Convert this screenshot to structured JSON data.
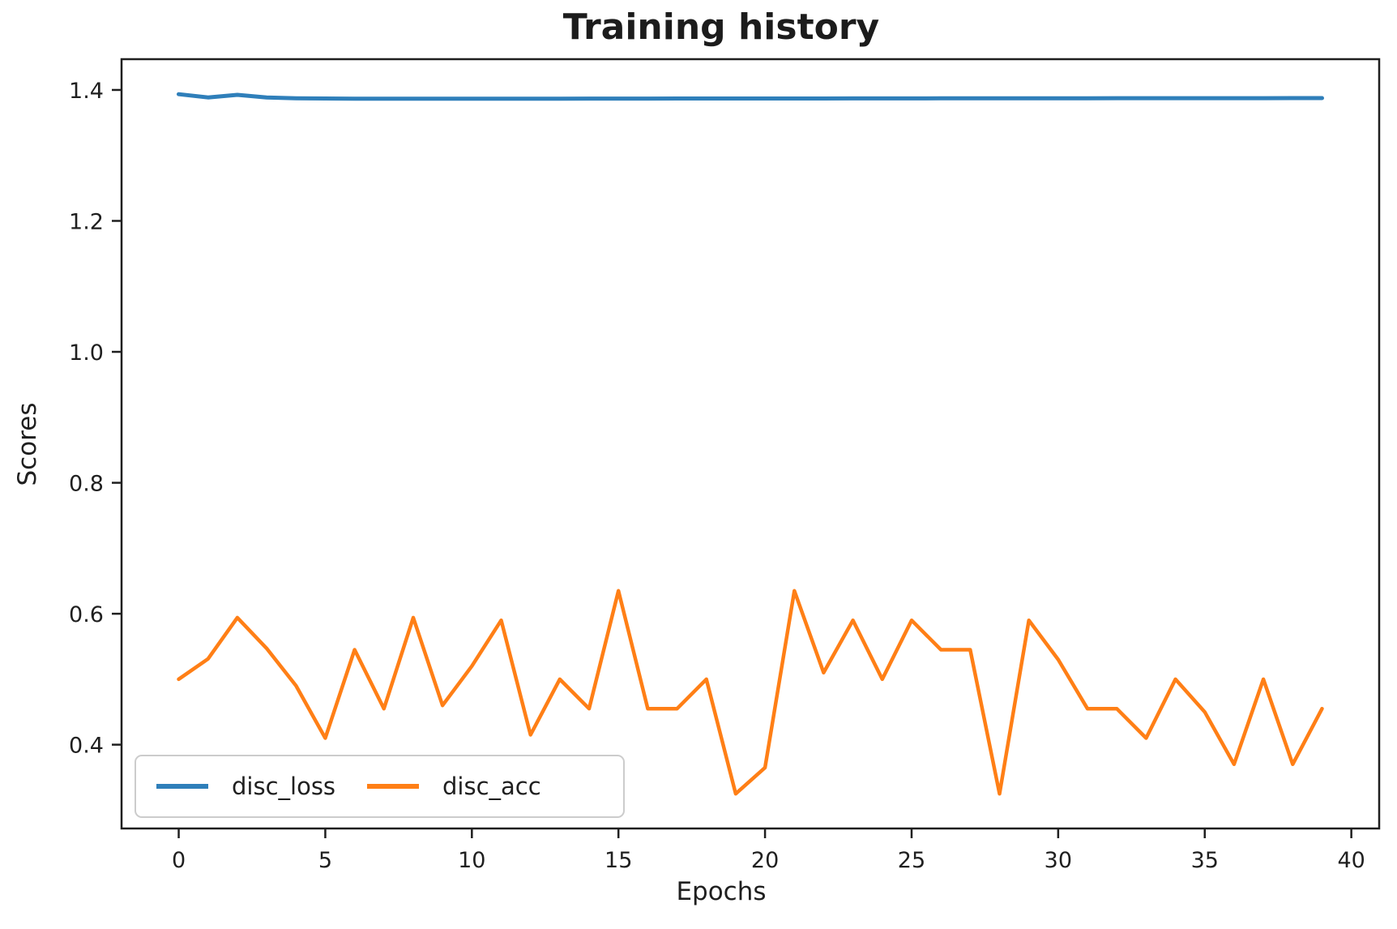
{
  "figure": {
    "title": "Training history",
    "xlabel": "Epochs",
    "ylabel": "Scores"
  },
  "colors": {
    "disc_loss": "#2f7fba",
    "disc_acc": "#ff7f16",
    "spine": "#1f1f1f",
    "tick_text": "#1f1f1f",
    "legend_border": "#cccccc",
    "background": "#ffffff"
  },
  "chart_data": {
    "type": "line",
    "title": "Training history",
    "xlabel": "Epochs",
    "ylabel": "Scores",
    "grid": false,
    "legend_position": "lower left",
    "x": [
      0,
      1,
      2,
      3,
      4,
      5,
      6,
      7,
      8,
      9,
      10,
      11,
      12,
      13,
      14,
      15,
      16,
      17,
      18,
      19,
      20,
      21,
      22,
      23,
      24,
      25,
      26,
      27,
      28,
      29,
      30,
      31,
      32,
      33,
      34,
      35,
      36,
      37,
      38,
      39
    ],
    "series": [
      {
        "name": "disc_loss",
        "color": "#2f7fba",
        "values": [
          1.3935,
          1.3885,
          1.3925,
          1.3885,
          1.3873,
          1.3869,
          1.3867,
          1.3866,
          1.3866,
          1.3866,
          1.3866,
          1.3867,
          1.3867,
          1.3867,
          1.3868,
          1.3868,
          1.3868,
          1.3869,
          1.3869,
          1.3869,
          1.387,
          1.387,
          1.387,
          1.3871,
          1.3871,
          1.3871,
          1.3872,
          1.3872,
          1.3872,
          1.3873,
          1.3873,
          1.3873,
          1.3874,
          1.3874,
          1.3874,
          1.3875,
          1.3875,
          1.3875,
          1.3876,
          1.3876
        ]
      },
      {
        "name": "disc_acc",
        "color": "#ff7f16",
        "values": [
          0.5,
          0.531,
          0.594,
          0.547,
          0.49,
          0.41,
          0.545,
          0.455,
          0.594,
          0.46,
          0.52,
          0.59,
          0.415,
          0.5,
          0.455,
          0.635,
          0.455,
          0.455,
          0.5,
          0.325,
          0.365,
          0.635,
          0.51,
          0.59,
          0.5,
          0.59,
          0.545,
          0.545,
          0.325,
          0.59,
          0.53,
          0.455,
          0.455,
          0.41,
          0.5,
          0.45,
          0.37,
          0.5,
          0.37,
          0.455
        ]
      }
    ],
    "xlim": [
      -1.95,
      40.95
    ],
    "ylim": [
      0.272,
      1.447
    ],
    "xticks": [
      0,
      5,
      10,
      15,
      20,
      25,
      30,
      35,
      40
    ],
    "xtick_labels": [
      "0",
      "5",
      "10",
      "15",
      "20",
      "25",
      "30",
      "35",
      "40"
    ],
    "yticks": [
      0.4,
      0.6,
      0.8,
      1.0,
      1.2,
      1.4
    ],
    "ytick_labels": [
      "0.4",
      "0.6",
      "0.8",
      "1.0",
      "1.2",
      "1.4"
    ],
    "legend_entries": [
      "disc_loss",
      "disc_acc"
    ]
  }
}
